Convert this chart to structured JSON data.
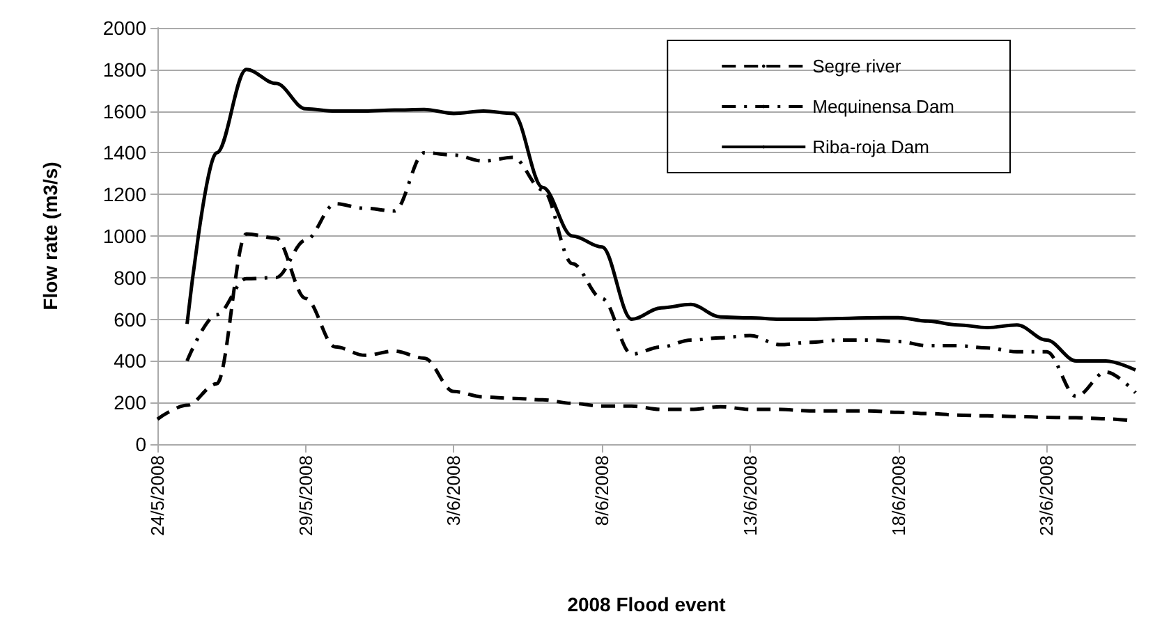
{
  "chart_data": {
    "type": "line",
    "xlabel": "2008 Flood event",
    "ylabel": "Flow rate (m3/s)",
    "x": [
      "2008-05-24",
      "2008-05-25",
      "2008-05-26",
      "2008-05-27",
      "2008-05-28",
      "2008-05-29",
      "2008-05-30",
      "2008-05-31",
      "2008-06-01",
      "2008-06-02",
      "2008-06-03",
      "2008-06-04",
      "2008-06-05",
      "2008-06-06",
      "2008-06-07",
      "2008-06-08",
      "2008-06-09",
      "2008-06-10",
      "2008-06-11",
      "2008-06-12",
      "2008-06-13",
      "2008-06-14",
      "2008-06-15",
      "2008-06-16",
      "2008-06-17",
      "2008-06-18",
      "2008-06-19",
      "2008-06-20",
      "2008-06-21",
      "2008-06-22",
      "2008-06-23",
      "2008-06-24",
      "2008-06-25",
      "2008-06-26"
    ],
    "series": [
      {
        "name": "Segre river",
        "color": "#000000",
        "line_style": "dashed",
        "values": [
          120,
          187,
          290,
          1010,
          990,
          700,
          467,
          427,
          447,
          413,
          253,
          227,
          220,
          213,
          196,
          183,
          183,
          167,
          167,
          180,
          167,
          167,
          160,
          160,
          160,
          153,
          147,
          140,
          136,
          133,
          129,
          127,
          122,
          111
        ]
      },
      {
        "name": "Mequinensa Dam",
        "color": "#000000",
        "line_style": "dashdot",
        "values": [
          null,
          400,
          622,
          795,
          800,
          980,
          1155,
          1133,
          1120,
          1400,
          1389,
          1360,
          1378,
          1222,
          867,
          700,
          433,
          467,
          500,
          511,
          522,
          478,
          489,
          500,
          500,
          493,
          473,
          473,
          462,
          444,
          444,
          230,
          347,
          247
        ]
      },
      {
        "name": "Riba-roja Dam",
        "color": "#000000",
        "line_style": "solid",
        "values": [
          null,
          578,
          1400,
          1800,
          1733,
          1611,
          1600,
          1600,
          1605,
          1608,
          1589,
          1600,
          1589,
          1233,
          1000,
          947,
          600,
          655,
          671,
          611,
          607,
          600,
          600,
          604,
          607,
          608,
          591,
          573,
          560,
          573,
          500,
          400,
          400,
          356
        ]
      }
    ],
    "xlim": [
      "2008-05-24",
      "2008-06-26"
    ],
    "xticks": [
      {
        "value": "2008-05-24",
        "label": "24/5/2008"
      },
      {
        "value": "2008-05-29",
        "label": "29/5/2008"
      },
      {
        "value": "2008-06-03",
        "label": "3/6/2008"
      },
      {
        "value": "2008-06-08",
        "label": "8/6/2008"
      },
      {
        "value": "2008-06-13",
        "label": "13/6/2008"
      },
      {
        "value": "2008-06-18",
        "label": "18/6/2008"
      },
      {
        "value": "2008-06-23",
        "label": "23/6/2008"
      }
    ],
    "ylim": [
      0,
      2000
    ],
    "yticks": [
      0,
      200,
      400,
      600,
      800,
      1000,
      1200,
      1400,
      1600,
      1800,
      2000
    ],
    "grid": "y",
    "legend": "top right",
    "marker": "none"
  }
}
